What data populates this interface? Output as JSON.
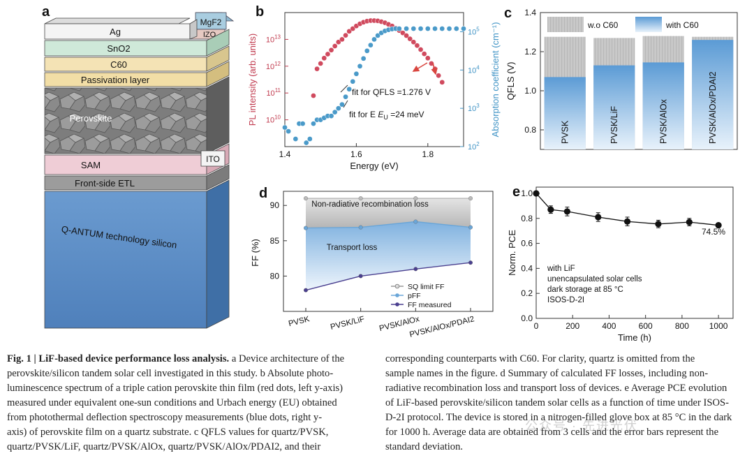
{
  "panels": {
    "a": {
      "label": "a",
      "layers": [
        "MgF2",
        "IZO",
        "Ag",
        "SnO2",
        "C60",
        "Passivation layer",
        "Perovskite",
        "SAM",
        "ITO",
        "Front-side ETL",
        "Q-ANTUM technology silicon"
      ],
      "colors": {
        "ag": "#f2f2f2",
        "sno2": "#cfe9d9",
        "c60": "#f4e3b5",
        "passivation": "#f4e4b3",
        "perovskite": "#8a8a8a",
        "sam": "#efcdd6",
        "etl": "#9a9a9a",
        "silicon": "#5f8fc6"
      }
    },
    "b": {
      "label": "b",
      "xlabel": "Energy (eV)",
      "ylabel_left": "PL intensity (arb. units)",
      "ylabel_right": "Absorption coefficient (cm⁻¹)",
      "annotation1": "fit for QFLS =1.276 V",
      "annotation2": "fit for E",
      "annotation2_sub": "U",
      "annotation2_tail": " =24 meV"
    },
    "c": {
      "label": "c",
      "ylabel": "QFLS (V)",
      "legend": [
        "w.o C60",
        "with C60"
      ]
    },
    "d": {
      "label": "d",
      "ylabel": "FF (%)",
      "region1": "Non-radiative recombination loss",
      "region2": "Transport loss",
      "legend": [
        "SQ limit FF",
        "pFF",
        "FF measured"
      ]
    },
    "e": {
      "label": "e",
      "xlabel": "Time (h)",
      "ylabel": "Norm. PCE",
      "final_label": "74.5%",
      "notes": [
        "with LiF",
        "unencapsulated solar cells",
        "dark storage at 85 °C",
        "ISOS-D-2I"
      ]
    }
  },
  "chart_data": [
    {
      "type": "scatter",
      "panel": "b",
      "xlabel": "Energy (eV)",
      "ylabel": "PL intensity (arb. units)",
      "y2label": "Absorption coefficient (cm⁻¹)",
      "xlim": [
        1.4,
        1.9
      ],
      "ylim_log": [
        9,
        14
      ],
      "y2lim_log": [
        2,
        5.5
      ],
      "xticks": [
        "1.4",
        "1.6",
        "1.8"
      ],
      "series": [
        {
          "name": "PL",
          "color": "#d04a5e",
          "axis": "left",
          "x": [
            1.48,
            1.49,
            1.5,
            1.51,
            1.52,
            1.53,
            1.54,
            1.55,
            1.56,
            1.57,
            1.58,
            1.59,
            1.6,
            1.61,
            1.62,
            1.63,
            1.64,
            1.65,
            1.66,
            1.67,
            1.68,
            1.69,
            1.7,
            1.71,
            1.72,
            1.73,
            1.74,
            1.75,
            1.76,
            1.77,
            1.78,
            1.79,
            1.8,
            1.81,
            1.82,
            1.83,
            1.84
          ],
          "y": [
            10.9,
            11.9,
            12.1,
            12.3,
            12.45,
            12.6,
            12.75,
            12.9,
            13.0,
            13.15,
            13.3,
            13.4,
            13.5,
            13.58,
            13.64,
            13.68,
            13.7,
            13.7,
            13.69,
            13.66,
            13.62,
            13.56,
            13.5,
            13.42,
            13.33,
            13.24,
            13.14,
            13.02,
            12.9,
            12.77,
            12.62,
            12.46,
            12.3,
            12.1,
            11.9,
            11.65,
            11.4
          ]
        },
        {
          "name": "Absorption",
          "color": "#4a9ac9",
          "axis": "right",
          "x": [
            1.4,
            1.41,
            1.43,
            1.44,
            1.45,
            1.46,
            1.47,
            1.48,
            1.49,
            1.5,
            1.51,
            1.52,
            1.53,
            1.54,
            1.55,
            1.56,
            1.57,
            1.58,
            1.59,
            1.6,
            1.61,
            1.62,
            1.63,
            1.64,
            1.65,
            1.66,
            1.67,
            1.68,
            1.69,
            1.7,
            1.71,
            1.72,
            1.74,
            1.76,
            1.78,
            1.8,
            1.82,
            1.84,
            1.86,
            1.88,
            1.9
          ],
          "y": [
            2.5,
            2.4,
            2.2,
            2.6,
            2.6,
            2.1,
            2.2,
            2.6,
            2.7,
            2.7,
            2.75,
            2.8,
            2.8,
            2.9,
            3.0,
            3.1,
            3.3,
            3.5,
            3.7,
            3.9,
            4.1,
            4.3,
            4.5,
            4.65,
            4.8,
            4.9,
            4.97,
            5.02,
            5.05,
            5.07,
            5.08,
            5.08,
            5.08,
            5.08,
            5.08,
            5.08,
            5.08,
            5.08,
            5.08,
            5.08,
            5.08
          ]
        }
      ]
    },
    {
      "type": "bar",
      "panel": "c",
      "ylabel": "QFLS (V)",
      "ylim": [
        0.7,
        1.4
      ],
      "yticks": [
        "0.8",
        "1.0",
        "1.2",
        "1.4"
      ],
      "categories": [
        "PVSK",
        "PVSK/LiF",
        "PVSK/AlOx",
        "PVSK/AlOx/PDAI2"
      ],
      "series": [
        {
          "name": "w.o C60",
          "color": "#c8c8c8",
          "values": [
            1.276,
            1.27,
            1.28,
            1.276
          ]
        },
        {
          "name": "with C60",
          "color": "#5b9bd5",
          "values": [
            1.07,
            1.13,
            1.145,
            1.26
          ]
        }
      ]
    },
    {
      "type": "line",
      "panel": "d",
      "ylabel": "FF (%)",
      "ylim": [
        75,
        92
      ],
      "yticks": [
        "80",
        "85",
        "90"
      ],
      "categories": [
        "PVSK",
        "PVSK/LiF",
        "PVSK/AlOx",
        "PVSK/AlOx/PDAI2"
      ],
      "series": [
        {
          "name": "SQ limit FF",
          "color": "#bbbbbb",
          "values": [
            91.0,
            91.0,
            91.0,
            91.0
          ]
        },
        {
          "name": "pFF",
          "color": "#6aa6d8",
          "values": [
            86.8,
            86.9,
            87.7,
            86.9
          ]
        },
        {
          "name": "FF measured",
          "color": "#4a3f8f",
          "values": [
            78.0,
            80.0,
            81.0,
            81.9
          ]
        }
      ]
    },
    {
      "type": "line",
      "panel": "e",
      "xlabel": "Time (h)",
      "ylabel": "Norm. PCE",
      "xlim": [
        0,
        1080
      ],
      "ylim": [
        0.0,
        1.05
      ],
      "xticks": [
        "0",
        "200",
        "400",
        "600",
        "800",
        "1000"
      ],
      "yticks": [
        "0.0",
        "0.2",
        "0.4",
        "0.6",
        "0.8",
        "1.0"
      ],
      "series": [
        {
          "name": "Norm. PCE",
          "color": "#111111",
          "x": [
            0,
            80,
            170,
            340,
            500,
            670,
            840,
            1000
          ],
          "y": [
            1.0,
            0.87,
            0.855,
            0.81,
            0.775,
            0.755,
            0.77,
            0.745
          ],
          "err": [
            0,
            0.03,
            0.035,
            0.035,
            0.035,
            0.03,
            0.03,
            0
          ]
        }
      ]
    }
  ],
  "caption": {
    "left_title": "Fig. 1 | LiF-based device performance loss analysis.",
    "left_lines": [
      "a Device architecture of the",
      "perovskite/silicon tandem solar cell investigated in this study. b Absolute photo-",
      "luminescence spectrum of a triple cation perovskite thin film (red dots, left y-axis)",
      "measured under equivalent one-sun conditions and Urbach energy (EU) obtained",
      "from photothermal deflection spectroscopy measurements (blue dots, right y-",
      "axis) of perovskite film on a quartz substrate. c QFLS values for quartz/PVSK,",
      "quartz/PVSK/LiF, quartz/PVSK/AlOx, quartz/PVSK/AlOx/PDAI2, and their"
    ],
    "right_lines": [
      "corresponding counterparts with C60. For clarity, quartz is omitted from the",
      "sample names in the figure. d Summary of calculated FF losses, including non-",
      "radiative recombination loss and transport loss of devices. e Average PCE evolution",
      "of LiF-based perovskite/silicon tandem solar cells as a function of time under ISOS-",
      "D-2I protocol. The device is stored in a nitrogen-filled glove box at 85 °C in the dark",
      "for 1000 h. Average data are obtained from 3 cells and the error bars represent the",
      "standard deviation."
    ],
    "watermark": "公众号 · 先进光伏"
  }
}
